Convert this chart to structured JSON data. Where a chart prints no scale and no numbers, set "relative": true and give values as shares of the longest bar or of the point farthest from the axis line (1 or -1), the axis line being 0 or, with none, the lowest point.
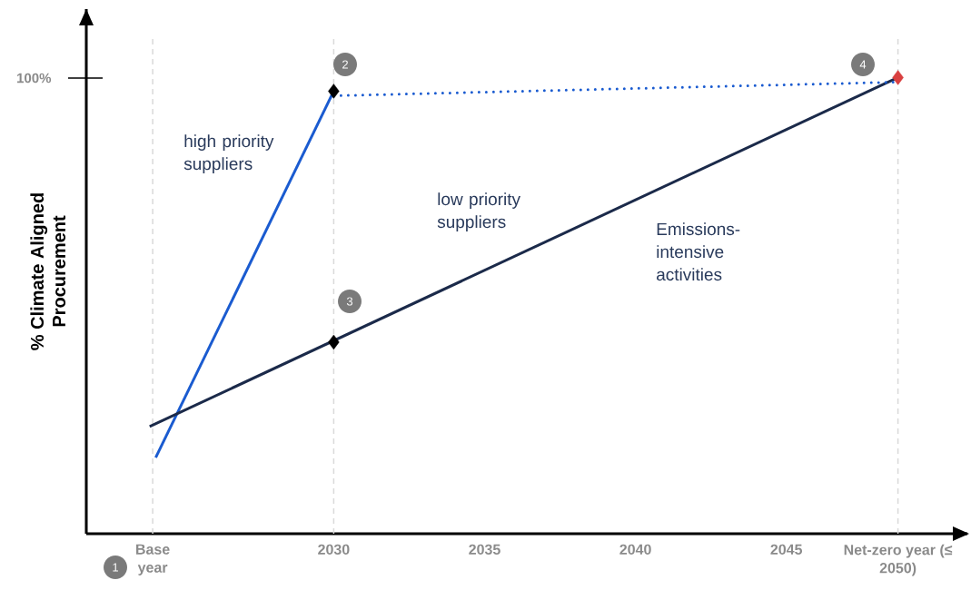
{
  "chart_data": {
    "type": "line",
    "relative": true,
    "ylabel": "% Climate Aligned Procurement",
    "xlim": [
      2021.8,
      2051.0
    ],
    "xticks": [
      {
        "value": 2024,
        "label": "Base year"
      },
      2030,
      2035,
      2040,
      2045,
      {
        "value": 2048.7,
        "label": "Net-zero year (≤ 2050)"
      }
    ],
    "series": [
      {
        "color": "#1a5bd0",
        "line_style": "solid",
        "x": [
          2024.1,
          2030
        ],
        "values": [
          0.167,
          0.97
        ]
      },
      {
        "color": "#1b2a4a",
        "line_style": "solid",
        "x": [
          2023.9,
          2048.7
        ],
        "values": [
          0.235,
          1.0
        ]
      },
      {
        "color": "#1a5bd0",
        "line_style": "dotted",
        "x": [
          2030,
          2048.7
        ],
        "values": [
          0.96,
          0.99
        ]
      },
      {
        "type": "scatter",
        "marker": "diamond",
        "colors": [
          "#000000",
          "#000000",
          "#d94040"
        ],
        "x": [
          2030,
          2030,
          2048.7
        ],
        "values": [
          0.97,
          0.42,
          1.0
        ]
      }
    ],
    "ref_lines": [
      {
        "axis": "x",
        "value": 2024,
        "color": "#d9d9d9",
        "line_style": "dashed"
      },
      {
        "axis": "x",
        "value": 2030,
        "color": "#d9d9d9",
        "line_style": "dashed"
      },
      {
        "axis": "x",
        "value": 2048.7,
        "color": "#d9d9d9",
        "line_style": "dashed"
      }
    ],
    "annotations": [
      "100%",
      "high priority suppliers",
      "low priority suppliers",
      "Emissions-intensive activities",
      "1",
      "2",
      "3",
      "4"
    ]
  }
}
